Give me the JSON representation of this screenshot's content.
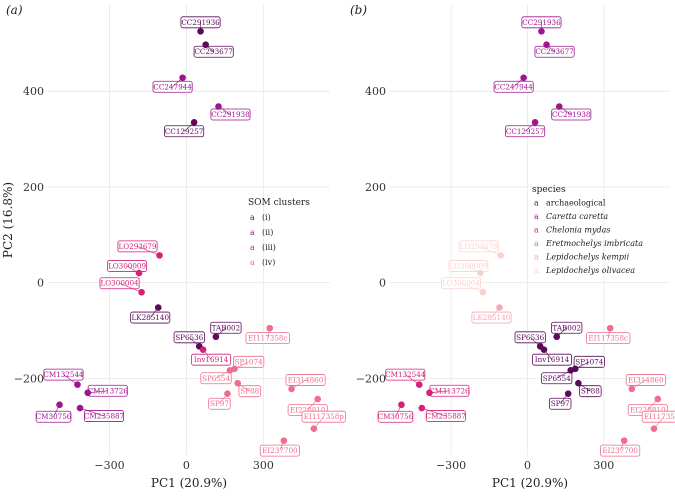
{
  "palette": {
    "c1": "#5b0a5b",
    "c2": "#a0158f",
    "c3": "#d6207a",
    "c4": "#ef6d8e",
    "c5": "#f4a9b6",
    "c6": "#fbd1ce",
    "axis_bg": "#ffffff",
    "grid": "#e8e8e8",
    "text": "#222222"
  },
  "chart_data": {
    "type": "scatter",
    "xlabel": "PC1 (20.9%)",
    "ylabel": "PC2 (16.8%)",
    "xlim": [
      -540,
      560
    ],
    "ylim": [
      -360,
      580
    ],
    "xticks": [
      -300,
      0,
      300
    ],
    "yticks": [
      -200,
      0,
      200,
      400
    ],
    "points": [
      {
        "label": "CC291936",
        "x": 55,
        "y": 525,
        "cluster": 1,
        "species": 2
      },
      {
        "label": "CC293677",
        "x": 75,
        "y": 497,
        "cluster": 1,
        "species": 2
      },
      {
        "label": "CC247944",
        "x": -15,
        "y": 428,
        "cluster": 2,
        "species": 2
      },
      {
        "label": "CC291938",
        "x": 125,
        "y": 368,
        "cluster": 2,
        "species": 2
      },
      {
        "label": "CC129257",
        "x": 30,
        "y": 335,
        "cluster": 1,
        "species": 2
      },
      {
        "label": "LO293679",
        "x": -105,
        "y": 57,
        "cluster": 3,
        "species": 6
      },
      {
        "label": "LO300009",
        "x": -185,
        "y": 20,
        "cluster": 3,
        "species": 6
      },
      {
        "label": "LO300004",
        "x": -175,
        "y": -20,
        "cluster": 3,
        "species": 6
      },
      {
        "label": "LK285140",
        "x": -110,
        "y": -52,
        "cluster": 1,
        "species": 5
      },
      {
        "label": "EI117358c",
        "x": 325,
        "y": -95,
        "cluster": 4,
        "species": 4
      },
      {
        "label": "TAB002",
        "x": 115,
        "y": -113,
        "cluster": 1,
        "species": 1
      },
      {
        "label": "SP6536",
        "x": 50,
        "y": -133,
        "cluster": 1,
        "species": 1
      },
      {
        "label": "Inv16914",
        "x": 65,
        "y": -140,
        "cluster": 3,
        "species": 1
      },
      {
        "label": "SP1074",
        "x": 188,
        "y": -180,
        "cluster": 4,
        "species": 1
      },
      {
        "label": "SP6554",
        "x": 170,
        "y": -183,
        "cluster": 4,
        "species": 1
      },
      {
        "label": "SP88",
        "x": 200,
        "y": -210,
        "cluster": 4,
        "species": 1
      },
      {
        "label": "SP97",
        "x": 160,
        "y": -232,
        "cluster": 4,
        "species": 1
      },
      {
        "label": "EI314860",
        "x": 410,
        "y": -222,
        "cluster": 4,
        "species": 4
      },
      {
        "label": "EI220810",
        "x": 512,
        "y": -243,
        "cluster": 4,
        "species": 4
      },
      {
        "label": "EI117358p",
        "x": 497,
        "y": -305,
        "cluster": 4,
        "species": 4
      },
      {
        "label": "EI237700",
        "x": 380,
        "y": -330,
        "cluster": 4,
        "species": 4
      },
      {
        "label": "CM132544",
        "x": -425,
        "y": -213,
        "cluster": 2,
        "species": 3
      },
      {
        "label": "CM313726",
        "x": -385,
        "y": -230,
        "cluster": 2,
        "species": 3
      },
      {
        "label": "CM30756",
        "x": -495,
        "y": -255,
        "cluster": 2,
        "species": 3
      },
      {
        "label": "CM235887",
        "x": -415,
        "y": -262,
        "cluster": 2,
        "species": 3
      }
    ],
    "panels": [
      {
        "panel_label": "(a)",
        "color_by": "cluster",
        "legend_title": "SOM clusters",
        "legend_key_glyph": "a",
        "legend_entries": [
          "(i)",
          "(ii)",
          "(iii)",
          "(iv)"
        ]
      },
      {
        "panel_label": "(b)",
        "color_by": "species",
        "legend_title": "species",
        "legend_key_glyph": "a",
        "legend_entries": [
          "archaeological",
          "Caretta caretta",
          "Chelonia mydas",
          "Eretmochelys imbricata",
          "Lepidochelys kempii",
          "Lepidochelys olivacea"
        ]
      }
    ]
  }
}
